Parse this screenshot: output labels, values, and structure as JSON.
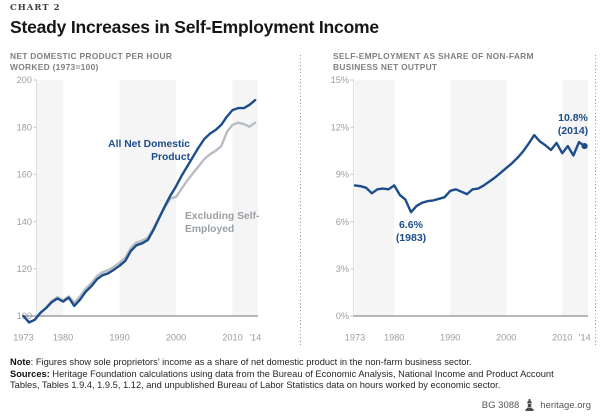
{
  "eyebrow": "CHART 2",
  "title": "Steady Increases in Self-Employment Income",
  "panels": [
    {
      "header_line1": "NET DOMESTIC PRODUCT PER HOUR",
      "header_line2": "WORKED (1973=100)"
    },
    {
      "header_line1": "SELF-EMPLOYMENT AS SHARE OF NON-FARM",
      "header_line2": "BUSINESS NET OUTPUT"
    }
  ],
  "colors": {
    "navy": "#1d4d8a",
    "gray_line": "#b7bdc3",
    "band": "#f5f5f6",
    "baseline": "#8d8d8d",
    "axis_line": "#dedede",
    "tick": "#c6c6c6",
    "axis_label": "#9ba0a4",
    "gray_label": "#9aa0a5"
  },
  "chart_data": [
    {
      "type": "line",
      "title": "NET DOMESTIC PRODUCT PER HOUR WORKED (1973=100)",
      "x": [
        1973,
        1974,
        1975,
        1976,
        1977,
        1978,
        1979,
        1980,
        1981,
        1982,
        1983,
        1984,
        1985,
        1986,
        1987,
        1988,
        1989,
        1990,
        1991,
        1992,
        1993,
        1994,
        1995,
        1996,
        1997,
        1998,
        1999,
        2000,
        2001,
        2002,
        2003,
        2004,
        2005,
        2006,
        2007,
        2008,
        2009,
        2010,
        2011,
        2012,
        2013,
        2014
      ],
      "series": [
        {
          "name": "All Net Domestic Product",
          "color": "#1d4d8a",
          "values": [
            100,
            97.3,
            98.4,
            101.4,
            103.4,
            105.9,
            107.4,
            106.1,
            107.8,
            104.3,
            106.9,
            110.3,
            112.6,
            115.6,
            117.3,
            118.1,
            119.6,
            121.3,
            123.3,
            127.6,
            130,
            130.8,
            132.2,
            136.5,
            141.5,
            146.5,
            151,
            155,
            159.5,
            163.5,
            167.5,
            171.5,
            175,
            177.3,
            178.8,
            181,
            184.5,
            187.3,
            188.1,
            188.1,
            189.5,
            191.5
          ]
        },
        {
          "name": "Excluding Self-Employed",
          "color": "#b7bdc3",
          "values": [
            100,
            97.3,
            98.4,
            101.4,
            103.4,
            106.4,
            108,
            106.6,
            108.3,
            105.6,
            108.2,
            111.6,
            113.9,
            116.9,
            118.6,
            119.4,
            120.9,
            122.6,
            124.6,
            128.9,
            131.2,
            131.9,
            133.2,
            137.2,
            141.8,
            146,
            149.8,
            150.5,
            154,
            157.5,
            160.5,
            163.5,
            166.5,
            168.5,
            170,
            172,
            178,
            181,
            181.9,
            181.3,
            180.2,
            181.9
          ]
        }
      ],
      "ylim": [
        100,
        200
      ],
      "yticks": [
        100,
        120,
        140,
        160,
        180,
        200
      ],
      "ytick_labels": [
        "100",
        "120",
        "140",
        "160",
        "180",
        "200"
      ],
      "xticks": [
        1973,
        1980,
        1990,
        2000,
        2010,
        2014
      ],
      "xtick_labels": [
        "1973",
        "1980",
        "1990",
        "2000",
        "2010",
        "’14"
      ],
      "grid": false,
      "shaded_decades": [
        [
          1973,
          1980
        ],
        [
          1990,
          2000
        ],
        [
          2010,
          2014
        ]
      ],
      "legend_position": "inline-labels",
      "annotations": [
        {
          "lines": [
            "All Net Domestic",
            "Product"
          ],
          "color": "#1d4d8a"
        },
        {
          "lines": [
            "Excluding Self-",
            "Employed"
          ],
          "color": "#9aa0a5"
        }
      ]
    },
    {
      "type": "line",
      "title": "SELF-EMPLOYMENT AS SHARE OF NON-FARM BUSINESS NET OUTPUT",
      "x": [
        1973,
        1974,
        1975,
        1976,
        1977,
        1978,
        1979,
        1980,
        1981,
        1982,
        1983,
        1984,
        1985,
        1986,
        1987,
        1988,
        1989,
        1990,
        1991,
        1992,
        1993,
        1994,
        1995,
        1996,
        1997,
        1998,
        1999,
        2000,
        2001,
        2002,
        2003,
        2004,
        2005,
        2006,
        2007,
        2008,
        2009,
        2010,
        2011,
        2012,
        2013,
        2014
      ],
      "series": [
        {
          "name": "Self-employment share of non-farm business net output",
          "color": "#1d4d8a",
          "values": [
            8.3,
            8.25,
            8.15,
            7.8,
            8.05,
            8.1,
            8.05,
            8.3,
            7.7,
            7.4,
            6.6,
            7,
            7.2,
            7.3,
            7.35,
            7.45,
            7.55,
            7.95,
            8.05,
            7.9,
            7.75,
            8.05,
            8.1,
            8.3,
            8.55,
            8.8,
            9.1,
            9.4,
            9.7,
            10.05,
            10.45,
            10.95,
            11.5,
            11.1,
            10.85,
            10.55,
            11,
            10.35,
            10.8,
            10.2,
            11.05,
            10.8
          ]
        }
      ],
      "ylim": [
        0,
        15
      ],
      "yticks": [
        0,
        3,
        6,
        9,
        12,
        15
      ],
      "ytick_labels": [
        "0%",
        "3%",
        "6%",
        "9%",
        "12%",
        "15%"
      ],
      "xticks": [
        1973,
        1980,
        1990,
        2000,
        2010,
        2014
      ],
      "xtick_labels": [
        "1973",
        "1980",
        "1990",
        "2000",
        "2010",
        "’14"
      ],
      "grid": false,
      "shaded_decades": [
        [
          1973,
          1980
        ],
        [
          1990,
          2000
        ],
        [
          2010,
          2014
        ]
      ],
      "annotations": [
        {
          "lines": [
            "6.6%",
            "(1983)"
          ],
          "year": 1983,
          "value": 6.6,
          "color": "#1d4d8a"
        },
        {
          "lines": [
            "10.8%",
            "(2014)"
          ],
          "year": 2014,
          "value": 10.8,
          "color": "#1d4d8a"
        }
      ],
      "end_marker": {
        "year": 2014,
        "value": 10.8
      }
    }
  ],
  "note": {
    "label": "Note",
    "text": ": Figures show sole proprietors’ income as a share of net domestic product in the non-farm business sector."
  },
  "sources": {
    "label": "Sources:",
    "text": " Heritage Foundation calculations using data from the Bureau of Economic Analysis, National Income and Product Account Tables, Tables 1.9.4, 1.9.5, 1.12, and unpublished Bureau of Labor Statistics data on hours worked by economic sector."
  },
  "footer": {
    "doc_id": "BG 3088",
    "site": "heritage.org"
  }
}
